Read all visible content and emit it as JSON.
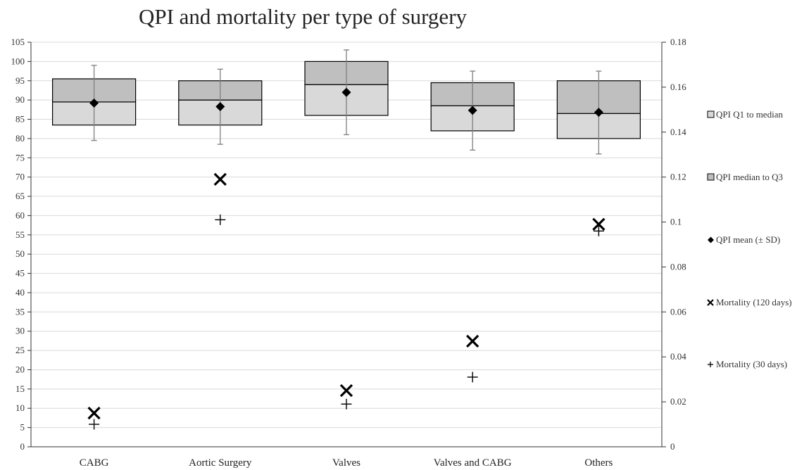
{
  "chart_data": {
    "type": "box",
    "title": "QPI and mortality per type of surgery",
    "categories": [
      "CABG",
      "Aortic Surgery",
      "Valves",
      "Valves and CABG",
      "Others"
    ],
    "y_left": {
      "min": 0,
      "max": 105,
      "step": 5,
      "ticks": [
        "0",
        "5",
        "10",
        "15",
        "20",
        "25",
        "30",
        "35",
        "40",
        "45",
        "50",
        "55",
        "60",
        "65",
        "70",
        "75",
        "80",
        "85",
        "90",
        "95",
        "100",
        "105"
      ]
    },
    "y_right": {
      "min": 0,
      "max": 0.18,
      "step": 0.02,
      "ticks": [
        "0",
        "0.02",
        "0.04",
        "0.06",
        "0.08",
        "0.1",
        "0.12",
        "0.14",
        "0.16",
        "0.18"
      ]
    },
    "grid": true,
    "legend_position": "right",
    "legend": [
      {
        "key": "q1",
        "label": "QPI Q1 to median"
      },
      {
        "key": "q3",
        "label": "QPI median to Q3"
      },
      {
        "key": "mean",
        "label": "QPI mean (± SD)"
      },
      {
        "key": "m120",
        "label": "Mortality (120 days)"
      },
      {
        "key": "m30",
        "label": "Mortality (30 days)"
      }
    ],
    "series": {
      "q1": [
        83.5,
        83.5,
        86,
        82,
        80
      ],
      "median": [
        89.5,
        90,
        94,
        88.5,
        86.5
      ],
      "q3": [
        95.5,
        95,
        100,
        94.5,
        95
      ],
      "mean": [
        89.2,
        88.3,
        92,
        87.3,
        86.8
      ],
      "sd_low": [
        79.5,
        78.5,
        81,
        77,
        76
      ],
      "sd_high": [
        99,
        98,
        103,
        97.5,
        97.5
      ],
      "mortality_120": [
        0.015,
        0.119,
        0.025,
        0.047,
        0.099
      ],
      "mortality_30": [
        0.01,
        0.101,
        0.019,
        0.031,
        0.096
      ]
    },
    "colors": {
      "q1_fill": "#d9d9d9",
      "q3_fill": "#bfbfbf",
      "box_stroke": "#000000",
      "whisker": "#7f7f7f",
      "grid": "#d9d9d9",
      "marker": "#000000"
    }
  }
}
